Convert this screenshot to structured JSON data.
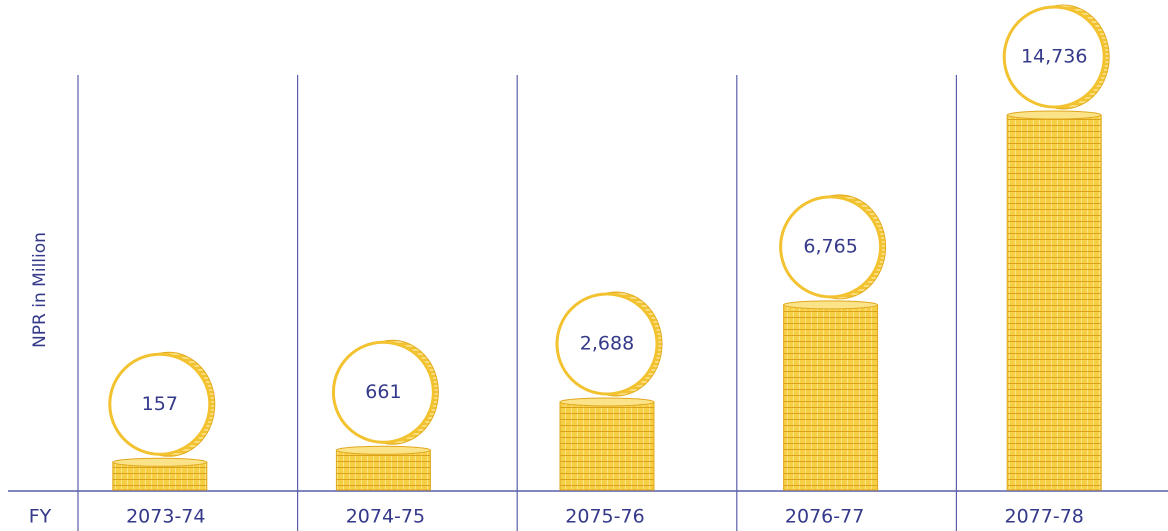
{
  "chart_data": {
    "type": "bar",
    "y_label": "NPR in Million",
    "x_label": "FY",
    "categories": [
      "2073-74",
      "2074-75",
      "2075-76",
      "2076-77",
      "2077-78"
    ],
    "values": [
      157,
      661,
      2688,
      6765,
      14736
    ],
    "value_labels": [
      "157",
      "661",
      "2,688",
      "6,765",
      "14,736"
    ],
    "color": "#f2c230"
  }
}
